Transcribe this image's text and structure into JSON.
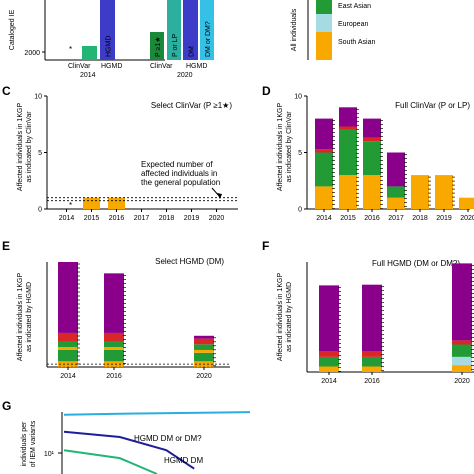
{
  "colors": {
    "purple": "#8b008b",
    "red": "#d92626",
    "green": "#229a35",
    "lightblue": "#a6dbe3",
    "orange": "#f9a800",
    "hgmd_blue": "#3c3cc8",
    "clinvar_green": "#1a8a3a",
    "dm_light": "#35c1e6",
    "line_cyan": "#2aaee0",
    "line_navy": "#1e1e9c",
    "line_green": "#22b573"
  },
  "chart_data": [
    {
      "panel": "A",
      "type": "bar",
      "ylabel": "Cataloged IE",
      "ytick_labels": [
        "2000"
      ],
      "ylim": [
        0,
        5000
      ],
      "groups": [
        {
          "year": "2014",
          "bars": [
            {
              "label": "ClinVar",
              "value": 1000,
              "color": "#22b573",
              "label_outside": true,
              "marker": "*"
            },
            {
              "label": "HGMD",
              "value": 5000,
              "color": "#3c3cc8",
              "label_outside": false
            }
          ]
        },
        {
          "year": "2020",
          "bars": [
            {
              "label": "P ≥1★",
              "value": 2000,
              "color": "#1a8a3a",
              "group_label": "ClinVar"
            },
            {
              "label": "P or LP",
              "value": 5000,
              "color": "#2bb0a0"
            },
            {
              "label": "DM",
              "value": 5000,
              "color": "#3c3cc8",
              "group_label": "HGMD"
            },
            {
              "label": "DM or DM?",
              "value": 5000,
              "color": "#35c1e6"
            }
          ]
        }
      ]
    },
    {
      "panel": "B",
      "type": "legend",
      "ylabel": "All individuals",
      "legend": [
        {
          "label": "East Asian",
          "color": "#229a35"
        },
        {
          "label": "European",
          "color": "#a6dbe3"
        },
        {
          "label": "South Asian",
          "color": "#f9a800"
        }
      ]
    },
    {
      "panel": "C",
      "type": "bar",
      "title": "Select ClinVar (P ≥1★)",
      "ylabel": "Affected individuals in 1KGP as indicated by ClinVar",
      "xlabel": "",
      "categories": [
        "2014",
        "2015",
        "2016",
        "2017",
        "2018",
        "2019",
        "2020"
      ],
      "yticks": [
        0,
        5,
        10
      ],
      "ylim": [
        0,
        10
      ],
      "series": [
        {
          "values": [
            0,
            1,
            1,
            0,
            0,
            0,
            0
          ]
        }
      ],
      "star_at": "2014",
      "reference_value": 1,
      "annotation": "Expected number of affected individuals in the general population"
    },
    {
      "panel": "D",
      "type": "bar",
      "title": "Full ClinVar (P or LP)",
      "ylabel": "Affected individuals in 1KGP as indicated by ClinVar",
      "categories": [
        "2014",
        "2015",
        "2016",
        "2017",
        "2018",
        "2019",
        "2020"
      ],
      "yticks": [
        0,
        5,
        10
      ],
      "ylim": [
        0,
        10
      ],
      "stacked": [
        [
          {
            "c": "orange",
            "v": 2
          },
          {
            "c": "green",
            "v": 3
          },
          {
            "c": "red",
            "v": 0.3
          },
          {
            "c": "purple",
            "v": 2.7
          }
        ],
        [
          {
            "c": "orange",
            "v": 3
          },
          {
            "c": "green",
            "v": 4
          },
          {
            "c": "red",
            "v": 0.3
          },
          {
            "c": "purple",
            "v": 1.7
          }
        ],
        [
          {
            "c": "orange",
            "v": 3
          },
          {
            "c": "green",
            "v": 3
          },
          {
            "c": "red",
            "v": 0.3
          },
          {
            "c": "purple",
            "v": 1.7
          }
        ],
        [
          {
            "c": "orange",
            "v": 1
          },
          {
            "c": "green",
            "v": 1
          },
          {
            "c": "purple",
            "v": 3
          }
        ],
        [
          {
            "c": "orange",
            "v": 3
          }
        ],
        [
          {
            "c": "orange",
            "v": 3
          }
        ],
        [
          {
            "c": "orange",
            "v": 1
          }
        ]
      ]
    },
    {
      "panel": "E",
      "type": "bar",
      "title": "Select HGMD (DM)",
      "ylabel": "Affected individuals in 1KGP as indicated by HGMD",
      "categories": [
        "2014",
        "2016",
        "2020"
      ],
      "ylim": [
        0,
        37
      ],
      "stacked": [
        [
          {
            "c": "orange",
            "v": 2
          },
          {
            "c": "green",
            "v": 4
          },
          {
            "c": "orange",
            "v": 1
          },
          {
            "c": "green",
            "v": 2
          },
          {
            "c": "red",
            "v": 3
          },
          {
            "c": "purple",
            "v": 25
          }
        ],
        [
          {
            "c": "orange",
            "v": 2
          },
          {
            "c": "green",
            "v": 4
          },
          {
            "c": "orange",
            "v": 1
          },
          {
            "c": "green",
            "v": 2
          },
          {
            "c": "red",
            "v": 3
          },
          {
            "c": "purple",
            "v": 21
          }
        ],
        [
          {
            "c": "orange",
            "v": 2
          },
          {
            "c": "green",
            "v": 3
          },
          {
            "c": "orange",
            "v": 1
          },
          {
            "c": "green",
            "v": 2
          },
          {
            "c": "red",
            "v": 2
          },
          {
            "c": "purple",
            "v": 1
          }
        ]
      ],
      "reference_value": 1
    },
    {
      "panel": "F",
      "type": "bar",
      "title": "Full HGMD (DM or DM?)",
      "ylabel": "Affected individuals in 1KGP as indicated by HGMD",
      "categories": [
        "2014",
        "2016",
        "2020"
      ],
      "ylim": [
        0,
        160
      ],
      "stacked": [
        [
          {
            "c": "orange",
            "v": 8
          },
          {
            "c": "green",
            "v": 14
          },
          {
            "c": "red",
            "v": 8
          },
          {
            "c": "purple",
            "v": 96
          }
        ],
        [
          {
            "c": "orange",
            "v": 8
          },
          {
            "c": "green",
            "v": 14
          },
          {
            "c": "red",
            "v": 8
          },
          {
            "c": "purple",
            "v": 97
          }
        ],
        [
          {
            "c": "orange",
            "v": 10
          },
          {
            "c": "lightblue",
            "v": 12
          },
          {
            "c": "green",
            "v": 18
          },
          {
            "c": "red",
            "v": 6
          },
          {
            "c": "purple",
            "v": 112
          }
        ]
      ]
    },
    {
      "panel": "G",
      "type": "line",
      "ylabel": "individuals per of IEM variants",
      "ytick_labels": [
        "10¹"
      ],
      "series": [
        {
          "name": "HGMD DM or DM?",
          "color": "#2aaee0",
          "points": [
            [
              0,
              0.72
            ],
            [
              0.3,
              0.74
            ],
            [
              0.8,
              0.76
            ],
            [
              1,
              0.77
            ]
          ]
        },
        {
          "name": "HGMD DM",
          "color": "#1e1e9c",
          "points": [
            [
              0,
              0.4
            ],
            [
              0.3,
              0.3
            ],
            [
              0.55,
              0.05
            ],
            [
              0.7,
              -0.3
            ]
          ]
        },
        {
          "name": "",
          "color": "#22b573",
          "points": [
            [
              0,
              0.05
            ],
            [
              0.3,
              -0.1
            ],
            [
              0.5,
              -0.4
            ]
          ]
        }
      ]
    }
  ]
}
